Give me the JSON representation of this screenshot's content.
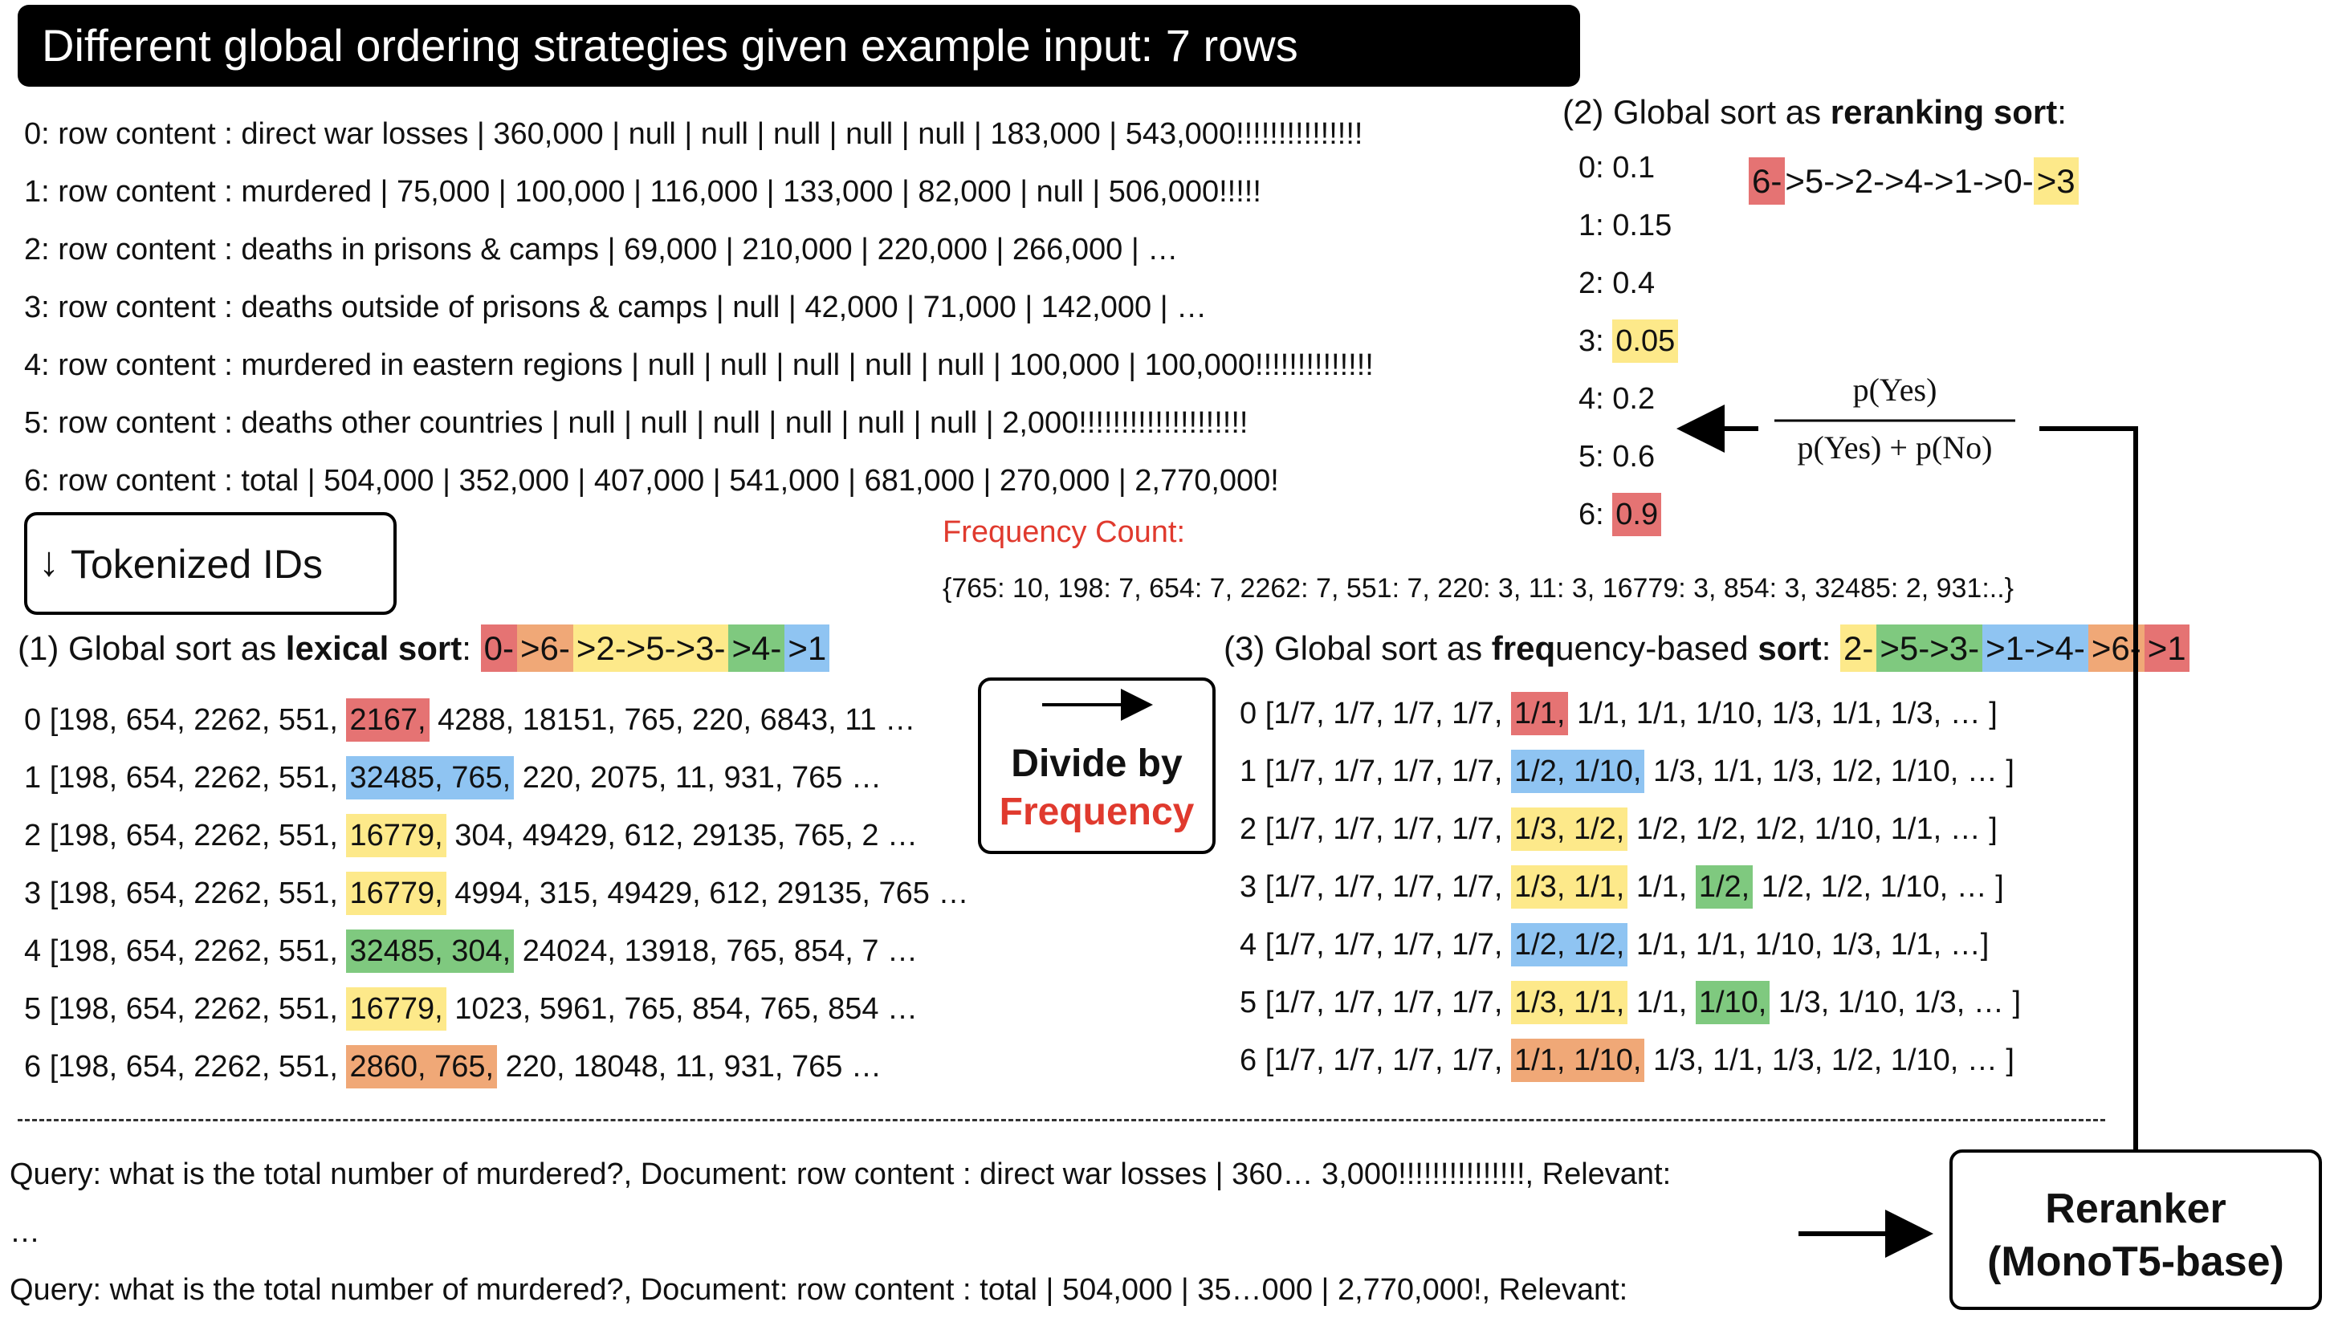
{
  "title": "Different global ordering strategies given example input: 7 rows",
  "rows": [
    "0: row content : direct war losses | 360,000 | null | null | null | null | null | 183,000 | 543,000!!!!!!!!!!!!!!!",
    "1: row content : murdered | 75,000 | 100,000 | 116,000 | 133,000 | 82,000 | null | 506,000!!!!!",
    "2: row content : deaths in prisons & camps | 69,000 | 210,000 | 220,000 | 266,000 |  …",
    "3: row content : deaths outside of prisons & camps | null | 42,000 | 71,000 | 142,000 | …",
    "4: row content : murdered in eastern regions | null | null | null | null | null | 100,000 | 100,000!!!!!!!!!!!!!!",
    "5: row content : deaths other countries | null | null | null | null | null | null | 2,000!!!!!!!!!!!!!!!!!!!!",
    "6: row content : total | 504,000 | 352,000 | 407,000 | 541,000 | 681,000 | 270,000 | 2,770,000!"
  ],
  "tokenized_label": "Tokenized IDs",
  "reranking": {
    "heading_prefix": "(2) Global sort as ",
    "heading_bold": "reranking sort",
    "heading_suffix": ":",
    "order": [
      "6-",
      ">5->2->4->1->0-",
      ">3"
    ],
    "scores": [
      {
        "idx": "0: ",
        "val": "0.1"
      },
      {
        "idx": "1: ",
        "val": "0.15"
      },
      {
        "idx": "2: ",
        "val": "0.4"
      },
      {
        "idx": "3: ",
        "val": "0.05"
      },
      {
        "idx": "4: ",
        "val": "0.2"
      },
      {
        "idx": "5: ",
        "val": "0.6"
      },
      {
        "idx": "6: ",
        "val": "0.9"
      }
    ],
    "formula_num": "p(Yes)",
    "formula_den": "p(Yes) + p(No)"
  },
  "frequency": {
    "title": "Frequency Count:",
    "counts": "{765: 10, 198: 7, 654: 7, 2262: 7, 551: 7,  220: 3, 11: 3, 16779: 3, 854: 3, 32485: 2, 931:..}"
  },
  "lexical": {
    "heading_prefix": "(1) Global sort as ",
    "heading_bold": "lexical sort",
    "heading_suffix": ": ",
    "order": [
      "0-",
      ">6-",
      ">2->5->3-",
      ">4-",
      ">1"
    ],
    "rows": [
      {
        "pre": "0 [198, 654, 2262, 551, ",
        "hl": "2167,",
        "post": " 4288, 18151, 765, 220, 6843, 11 …"
      },
      {
        "pre": "1 [198, 654, 2262, 551, ",
        "hl": "32485, 765,",
        "post": " 220, 2075, 11, 931, 765 …"
      },
      {
        "pre": "2 [198, 654, 2262, 551, ",
        "hl": "16779,",
        "post": " 304, 49429, 612, 29135, 765, 2 …"
      },
      {
        "pre": "3 [198, 654, 2262, 551, ",
        "hl": "16779,",
        "post": " 4994, 315, 49429, 612, 29135, 765 …"
      },
      {
        "pre": "4 [198, 654, 2262, 551, ",
        "hl": "32485, 304,",
        "post": " 24024, 13918, 765, 854, 7 …"
      },
      {
        "pre": "5 [198, 654, 2262, 551, ",
        "hl": "16779,",
        "post": " 1023, 5961, 765, 854, 765, 854 …"
      },
      {
        "pre": "6 [198, 654, 2262, 551, ",
        "hl": "2860, 765,",
        "post": " 220, 18048, 11, 931, 765 …"
      }
    ]
  },
  "divide": {
    "line1": "Divide by",
    "line2": "Frequency"
  },
  "freqsort": {
    "heading_prefix": "(3) Global sort as ",
    "heading_bold1": "freq",
    "heading_mid": "uency-based ",
    "heading_bold2": "sort",
    "heading_suffix": ": ",
    "order": [
      "2-",
      ">5->3-",
      ">1->4-",
      ">6-",
      ">1"
    ],
    "rows": [
      {
        "pre": "0 [1/7, 1/7, 1/7, 1/7, ",
        "hl": "1/1,",
        "hl2": "",
        "mid": "",
        "post": " 1/1, 1/1, 1/10, 1/3, 1/1, 1/3, … ]"
      },
      {
        "pre": "1 [1/7, 1/7, 1/7, 1/7, ",
        "hl": "1/2, 1/10,",
        "hl2": "",
        "mid": "",
        "post": " 1/3, 1/1, 1/3, 1/2, 1/10, … ]"
      },
      {
        "pre": "2 [1/7, 1/7, 1/7, 1/7, ",
        "hl": "1/3, 1/2,",
        "hl2": "",
        "mid": "",
        "post": " 1/2, 1/2, 1/2, 1/10, 1/1, … ]"
      },
      {
        "pre": "3 [1/7, 1/7, 1/7, 1/7, ",
        "hl": "1/3, 1/1,",
        "mid": " 1/1, ",
        "hl2": "1/2,",
        "post": " 1/2, 1/2, 1/10, … ]"
      },
      {
        "pre": "4 [1/7, 1/7, 1/7, 1/7, ",
        "hl": "1/2, 1/2,",
        "hl2": "",
        "mid": "",
        "post": " 1/1, 1/1, 1/10, 1/3, 1/1, …]"
      },
      {
        "pre": "5 [1/7, 1/7, 1/7, 1/7, ",
        "hl": "1/3, 1/1,",
        "mid": " 1/1, ",
        "hl2": "1/10,",
        "post": " 1/3, 1/10, 1/3, … ]"
      },
      {
        "pre": "6 [1/7, 1/7, 1/7, 1/7, ",
        "hl": "1/1, 1/10,",
        "hl2": "",
        "mid": "",
        "post": " 1/3, 1/1, 1/3, 1/2, 1/10, … ]"
      }
    ]
  },
  "queries": [
    "Query: what is the total number of murdered?, Document: row content : direct war losses | 360… 3,000!!!!!!!!!!!!!!!, Relevant:",
    "…",
    "Query: what is the total number of murdered?, Document: row content : total | 504,000 | 35…000 | 2,770,000!, Relevant:"
  ],
  "reranker": {
    "line1": "Reranker",
    "line2": "(MonoT5-base)"
  }
}
